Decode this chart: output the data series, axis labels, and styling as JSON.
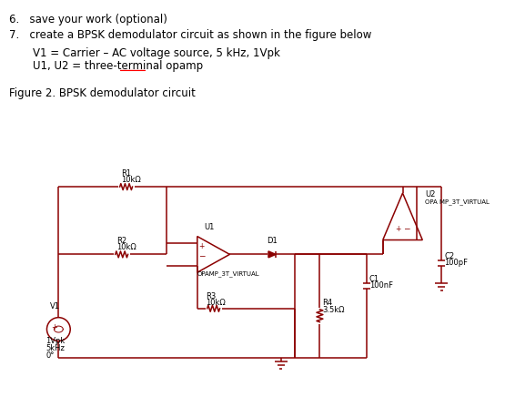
{
  "bg_color": "#ffffff",
  "text_color": "#000000",
  "circuit_color": "#8B0000",
  "line6": "6.   save your work (optional)",
  "line7": "7.   create a BPSK demodulator circuit as shown in the figure below",
  "line_v1": "V1 = Carrier – AC voltage source, 5 kHz, 1Vpk",
  "line_u1": "U1, U2 = three-terminal opamp",
  "fig_label": "Figure 2. BPSK demodulator circuit",
  "label_R1": "R1",
  "label_R1_val": "10kΩ",
  "label_R2": "R2",
  "label_R2_val": "10kΩ",
  "label_R3": "R3",
  "label_R3_val": "10kΩ",
  "label_R4": "R4",
  "label_R4_val": "3.5kΩ",
  "label_C1": "C1",
  "label_C1_val": "100nF",
  "label_C2": "C2",
  "label_C2_val": "100pF",
  "label_U1": "U1",
  "label_U1_comp": "OPAMP_3T_VIRTUAL",
  "label_U2": "U2",
  "label_U2_comp": "OPA MP_3T_VIRTUAL",
  "label_D1": "D1",
  "label_V1": "V1",
  "label_V1_val1": "1Vpk",
  "label_V1_val2": "5kHz",
  "label_V1_val3": "0°"
}
